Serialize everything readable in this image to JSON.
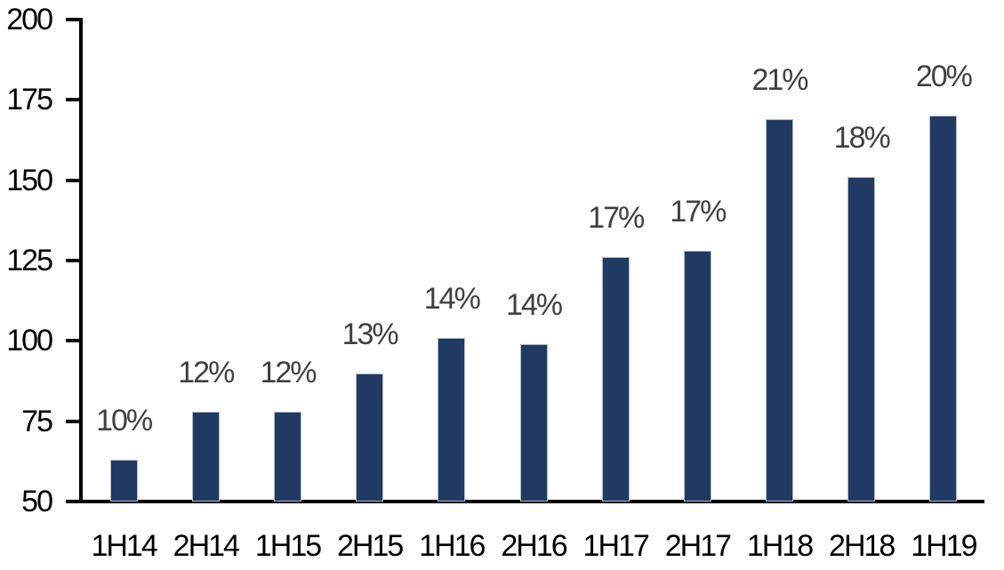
{
  "chart_data": {
    "type": "bar",
    "title": "",
    "xlabel": "",
    "ylabel": "",
    "categories": [
      "1H14",
      "2H14",
      "1H15",
      "2H15",
      "1H16",
      "2H16",
      "1H17",
      "2H17",
      "1H18",
      "2H18",
      "1H19"
    ],
    "values": [
      63,
      78,
      78,
      90,
      101,
      99,
      126,
      128,
      169,
      151,
      170
    ],
    "data_labels": [
      "10%",
      "12%",
      "12%",
      "13%",
      "14%",
      "14%",
      "17%",
      "17%",
      "21%",
      "18%",
      "20%"
    ],
    "ylim": [
      50,
      200
    ],
    "yticks": [
      50,
      75,
      100,
      125,
      150,
      175,
      200
    ],
    "grid": false,
    "legend": null,
    "colors": {
      "bar_fill": "#203A63",
      "bar_edge": "#b3bccd",
      "data_label": "#404040",
      "axis_text": "#000000",
      "axis_line": "#000000",
      "background": "#ffffff"
    }
  }
}
